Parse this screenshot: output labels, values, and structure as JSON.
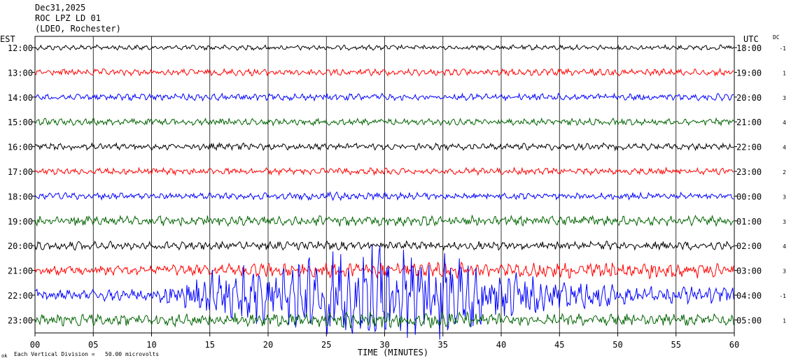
{
  "header": {
    "date": "Dec31,2025",
    "station": "ROC LPZ LD 01",
    "network": "(LDEO, Rochester)"
  },
  "left_tz": "EST",
  "right_tz": "UTC",
  "dc_label": "DC",
  "footer": {
    "mark": "ok",
    "scale_text": "Each Vertical Division =   50.00 microvolts"
  },
  "colors": {
    "black": "#000000",
    "red": "#ff0000",
    "blue": "#0000ff",
    "green": "#006400",
    "grid": "#000000"
  },
  "chart_data": {
    "type": "line",
    "title": "",
    "xlabel": "TIME (MINUTES)",
    "xlim": [
      0,
      60
    ],
    "x_ticks": [
      "00",
      "05",
      "10",
      "15",
      "20",
      "25",
      "30",
      "35",
      "40",
      "45",
      "50",
      "55",
      "60"
    ],
    "grid": true,
    "rows": [
      {
        "left": "12:00",
        "right": "18:00",
        "dc": "-1",
        "color": "black",
        "amp": [
          3,
          3,
          3,
          3,
          3,
          3,
          3,
          3,
          3,
          3,
          3,
          3
        ]
      },
      {
        "left": "13:00",
        "right": "19:00",
        "dc": "1",
        "color": "red",
        "amp": [
          4,
          4,
          4,
          4,
          4,
          4,
          4,
          4,
          4,
          4,
          4,
          4
        ]
      },
      {
        "left": "14:00",
        "right": "20:00",
        "dc": "3",
        "color": "blue",
        "amp": [
          4,
          4,
          4,
          4,
          4,
          4,
          4,
          4,
          4,
          4,
          4,
          4
        ]
      },
      {
        "left": "15:00",
        "right": "21:00",
        "dc": "4",
        "color": "green",
        "amp": [
          4,
          4,
          4,
          4,
          4,
          4,
          4,
          4,
          4,
          4,
          4,
          4
        ]
      },
      {
        "left": "16:00",
        "right": "22:00",
        "dc": "4",
        "color": "black",
        "amp": [
          4,
          4,
          4,
          4,
          4,
          4,
          4,
          4,
          4,
          4,
          4,
          4
        ]
      },
      {
        "left": "17:00",
        "right": "23:00",
        "dc": "2",
        "color": "red",
        "amp": [
          4,
          4,
          4,
          4,
          4,
          4,
          4,
          4,
          4,
          4,
          4,
          4
        ]
      },
      {
        "left": "18:00",
        "right": "00:00",
        "dc": "3",
        "color": "blue",
        "amp": [
          4,
          4,
          4,
          4,
          4,
          5,
          4,
          4,
          4,
          4,
          4,
          4
        ]
      },
      {
        "left": "19:00",
        "right": "01:00",
        "dc": "3",
        "color": "green",
        "amp": [
          6,
          6,
          6,
          6,
          6,
          6,
          6,
          6,
          6,
          6,
          6,
          6
        ]
      },
      {
        "left": "20:00",
        "right": "02:00",
        "dc": "4",
        "color": "black",
        "amp": [
          5,
          5,
          5,
          5,
          5,
          5,
          5,
          5,
          5,
          5,
          5,
          5
        ]
      },
      {
        "left": "21:00",
        "right": "03:00",
        "dc": "3",
        "color": "red",
        "amp": [
          6,
          6,
          6,
          7,
          9,
          9,
          9,
          9,
          9,
          9,
          10,
          9
        ]
      },
      {
        "left": "22:00",
        "right": "04:00",
        "dc": "-1",
        "color": "blue",
        "amp": [
          7,
          7,
          7,
          28,
          40,
          55,
          58,
          50,
          30,
          20,
          12,
          10
        ]
      },
      {
        "left": "23:00",
        "right": "05:00",
        "dc": "1",
        "color": "green",
        "amp": [
          7,
          7,
          7,
          8,
          8,
          9,
          10,
          9,
          8,
          7,
          7,
          7
        ]
      }
    ]
  }
}
